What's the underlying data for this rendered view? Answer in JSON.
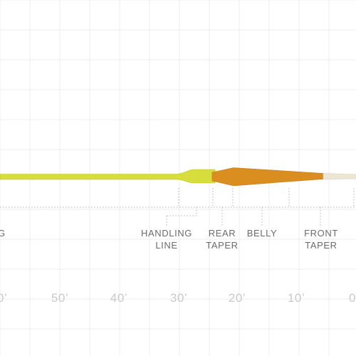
{
  "colors": {
    "background": "#ffffff",
    "grid": "#eeeeee",
    "guide": "#b5b5b5",
    "running_line": "#d7dd3c",
    "running_line_edge": "#bfc52b",
    "head_taper": "#d98e1f",
    "head_edge": "#c27816",
    "tip": "#ede6d3",
    "label_text": "#6b6b6b",
    "ruler_text": "#c9c9c9"
  },
  "sections": {
    "running_line_partial": "G",
    "handling_line": [
      "HANDLING",
      "LINE"
    ],
    "rear_taper": [
      "REAR",
      "TAPER"
    ],
    "belly": "BELLY",
    "front_taper": [
      "FRONT",
      "TAPER"
    ]
  },
  "ruler_labels": [
    "0’",
    "50’",
    "40’",
    "30’",
    "20’",
    "10’",
    "0"
  ]
}
